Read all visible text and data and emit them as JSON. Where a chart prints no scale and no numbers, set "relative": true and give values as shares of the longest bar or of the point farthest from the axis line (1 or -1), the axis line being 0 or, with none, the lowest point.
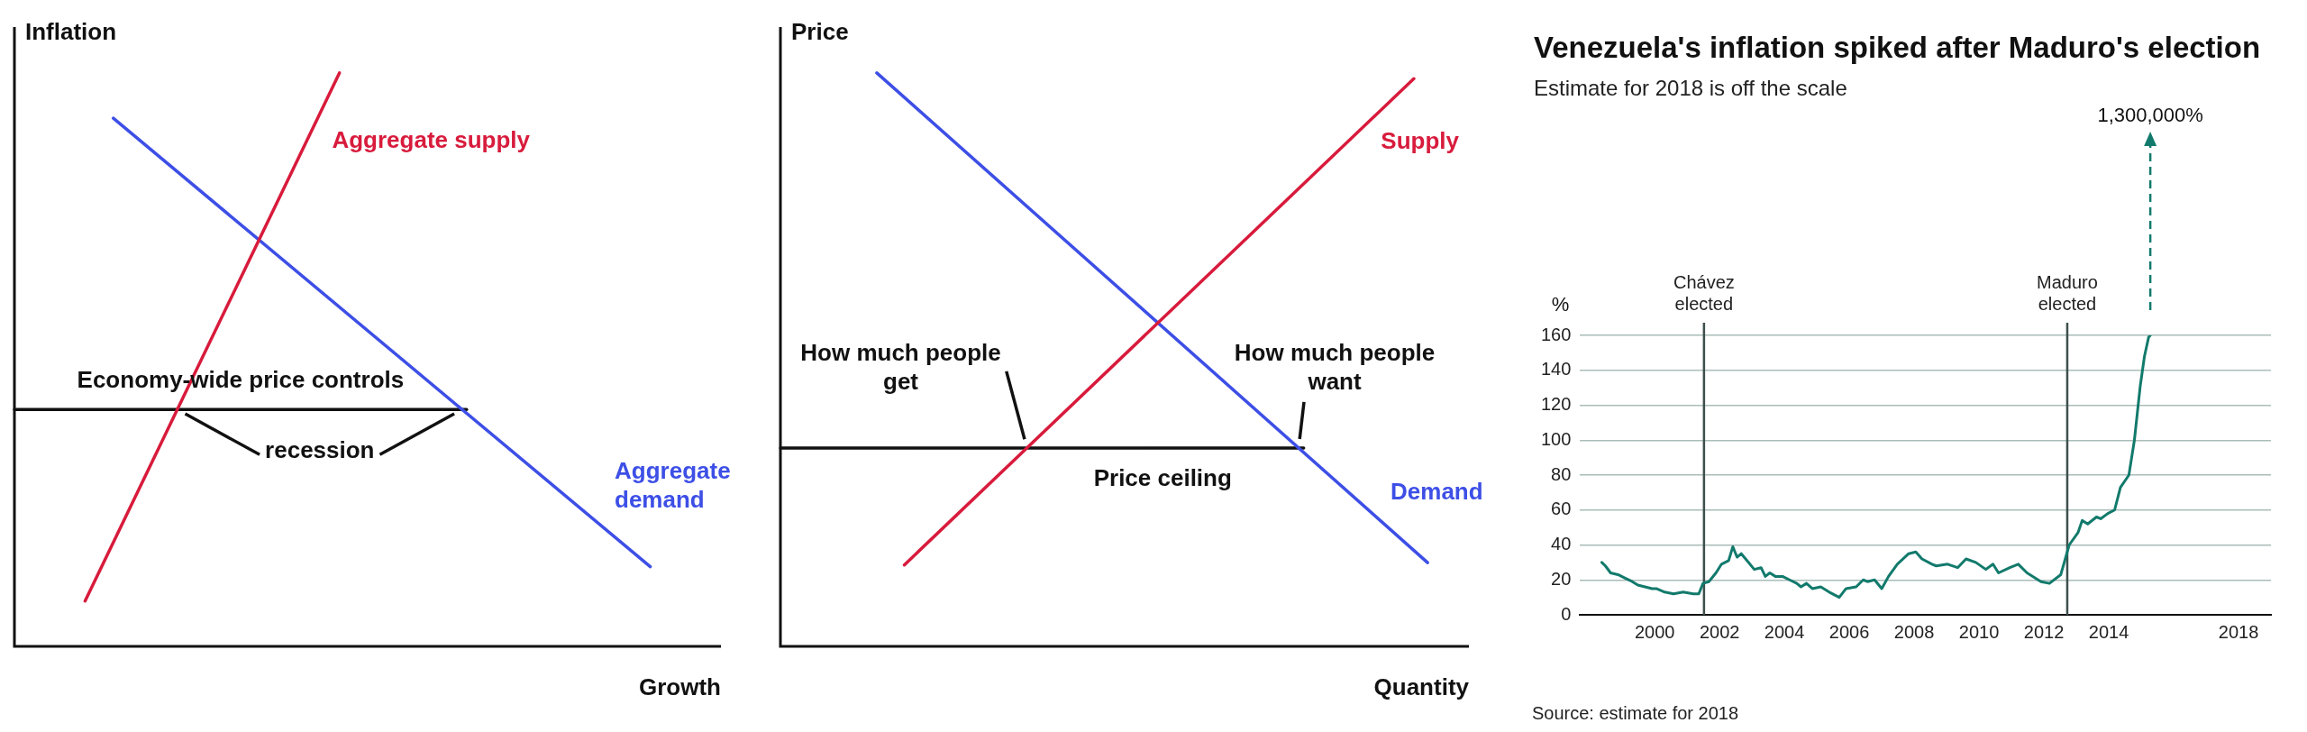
{
  "chart_data": [
    {
      "type": "line",
      "relative": true,
      "ylabel": "Inflation",
      "xlabel": "Growth",
      "legend": false,
      "grid": false,
      "categories": [
        null,
        null,
        null,
        null,
        null,
        null,
        null,
        null,
        null,
        null,
        null,
        null,
        null,
        null,
        null,
        null,
        null,
        null,
        null,
        null,
        null,
        null,
        null,
        null,
        null,
        null,
        null,
        null,
        null,
        null,
        null,
        null,
        null,
        null,
        null,
        null,
        null,
        null,
        null,
        null,
        null,
        null,
        null,
        null,
        null,
        null,
        null,
        null,
        null,
        null,
        null
      ],
      "series": [
        {
          "name": "Aggregate supply",
          "color": "#d81b3c",
          "values": [
            null,
            null,
            null,
            null,
            null,
            0.079,
            null,
            null,
            null,
            null,
            null,
            null,
            null,
            null,
            null,
            null,
            null,
            null,
            null,
            null,
            null,
            null,
            null,
            1,
            null,
            null,
            null,
            null,
            null,
            null,
            null,
            null,
            null,
            null,
            null,
            null,
            null,
            null,
            null,
            null,
            null,
            null,
            null,
            null,
            null,
            null,
            null,
            null,
            null,
            null,
            null
          ]
        },
        {
          "name": "Aggregate demand",
          "color": "#3d4fe6",
          "values": [
            null,
            null,
            null,
            null,
            null,
            null,
            null,
            0.921,
            null,
            null,
            null,
            null,
            null,
            null,
            null,
            null,
            null,
            null,
            null,
            null,
            null,
            null,
            null,
            null,
            null,
            null,
            null,
            null,
            null,
            null,
            null,
            null,
            null,
            null,
            null,
            null,
            null,
            null,
            null,
            null,
            null,
            null,
            null,
            null,
            null,
            0.139,
            null,
            null,
            null,
            null,
            null
          ]
        },
        {
          "name": "Economy-wide price controls",
          "color": "#111111",
          "values": [
            0.413,
            null,
            null,
            null,
            null,
            null,
            null,
            null,
            null,
            null,
            null,
            null,
            null,
            null,
            null,
            null,
            null,
            null,
            null,
            null,
            null,
            null,
            null,
            null,
            null,
            null,
            null,
            null,
            null,
            null,
            null,
            null,
            0.413,
            null,
            null,
            null,
            null,
            null,
            null,
            null,
            null,
            null,
            null,
            null,
            null,
            null,
            null,
            null,
            null,
            null,
            null
          ]
        }
      ],
      "annotations": [
        "recession"
      ]
    },
    {
      "type": "line",
      "relative": true,
      "ylabel": "Price",
      "xlabel": "Quantity",
      "legend": false,
      "grid": false,
      "categories": [
        null,
        null,
        null,
        null,
        null,
        null,
        null,
        null,
        null,
        null,
        null,
        null,
        null,
        null,
        null,
        null,
        null,
        null,
        null,
        null,
        null,
        null,
        null,
        null,
        null,
        null,
        null,
        null,
        null,
        null,
        null,
        null,
        null,
        null,
        null,
        null,
        null,
        null,
        null,
        null,
        null,
        null,
        null,
        null,
        null,
        null,
        null,
        null,
        null,
        null,
        null
      ],
      "series": [
        {
          "name": "Supply",
          "color": "#d81b3c",
          "values": [
            null,
            null,
            null,
            null,
            null,
            null,
            null,
            null,
            null,
            0.142,
            null,
            null,
            null,
            null,
            null,
            null,
            null,
            null,
            null,
            null,
            null,
            null,
            null,
            null,
            null,
            null,
            null,
            null,
            null,
            null,
            null,
            null,
            null,
            null,
            null,
            null,
            null,
            null,
            null,
            null,
            null,
            null,
            null,
            null,
            null,
            null,
            0.99,
            null,
            null,
            null,
            null
          ]
        },
        {
          "name": "Demand",
          "color": "#3d4fe6",
          "values": [
            null,
            null,
            null,
            null,
            null,
            null,
            null,
            1,
            null,
            null,
            null,
            null,
            null,
            null,
            null,
            null,
            null,
            null,
            null,
            null,
            null,
            null,
            null,
            null,
            null,
            null,
            null,
            null,
            null,
            null,
            null,
            null,
            null,
            null,
            null,
            null,
            null,
            null,
            null,
            null,
            null,
            null,
            null,
            null,
            null,
            null,
            null,
            0.146,
            null,
            null,
            null
          ]
        },
        {
          "name": "Price ceiling",
          "color": "#111111",
          "values": [
            0.346,
            null,
            null,
            null,
            null,
            null,
            null,
            null,
            null,
            null,
            null,
            null,
            null,
            null,
            null,
            null,
            null,
            null,
            null,
            null,
            null,
            null,
            null,
            null,
            null,
            null,
            null,
            null,
            null,
            null,
            null,
            null,
            null,
            null,
            null,
            null,
            null,
            null,
            0.346,
            null,
            null,
            null,
            null,
            null,
            null,
            null,
            null,
            null,
            null,
            null,
            null
          ]
        }
      ],
      "annotations": [
        "How much people get",
        "How much people want"
      ]
    },
    {
      "type": "line",
      "title": "Venezuela's inflation spiked after Maduro's election",
      "subtitle": "Estimate for 2018 is off the scale",
      "ylabel": "%",
      "legend": false,
      "grid": "y",
      "xlim": [
        1997.7,
        2019
      ],
      "xticks": [
        2000,
        2002,
        2004,
        2006,
        2008,
        2010,
        2012,
        2014,
        2018
      ],
      "ylim": [
        0,
        160
      ],
      "yticks": [
        0,
        20,
        40,
        60,
        80,
        100,
        120,
        140,
        160
      ],
      "series": [
        {
          "color": "#127a6c",
          "x": [
            1998.37,
            1998.48,
            1998.64,
            1998.87,
            1999.09,
            1999.31,
            1999.48,
            1999.7,
            1999.92,
            2000.05,
            2000.31,
            2000.58,
            2000.88,
            2001.19,
            2001.36,
            2001.49,
            2001.67,
            2001.89,
            2002.06,
            2002.28,
            2002.41,
            2002.54,
            2002.67,
            2002.85,
            2003.07,
            2003.28,
            2003.41,
            2003.55,
            2003.72,
            2003.94,
            2004.16,
            2004.38,
            2004.51,
            2004.68,
            2004.86,
            2005.12,
            2005.38,
            2005.69,
            2005.9,
            2006.21,
            2006.43,
            2006.56,
            2006.78,
            2007,
            2007.21,
            2007.48,
            2007.83,
            2008.05,
            2008.24,
            2008.55,
            2008.68,
            2009.03,
            2009.34,
            2009.6,
            2009.9,
            2010.21,
            2010.43,
            2010.6,
            2010.95,
            2011.21,
            2011.48,
            2011.91,
            2012.17,
            2012.52,
            2012.78,
            2013.05,
            2013.18,
            2013.35,
            2013.62,
            2013.75,
            2013.97,
            2014.18,
            2014.36,
            2014.62,
            2014.79,
            2014.97,
            2015.1,
            2015.23,
            2015.28
          ],
          "values": [
            30,
            28,
            24,
            23,
            21,
            19,
            17,
            16,
            15,
            15,
            13,
            12,
            13,
            12,
            12,
            18,
            19,
            24,
            29,
            31,
            39,
            33,
            35,
            31,
            26,
            27,
            22,
            24,
            22,
            22,
            20,
            18,
            16,
            18,
            15,
            16,
            13,
            10,
            15,
            16,
            20,
            19,
            20,
            15,
            22,
            29,
            35,
            36,
            32,
            29,
            28,
            29,
            27,
            32,
            30,
            26,
            29,
            24,
            27,
            29,
            24,
            19,
            18,
            23,
            40,
            47,
            54,
            52,
            56,
            55,
            58,
            60,
            73,
            80,
            100,
            131,
            148,
            159,
            160
          ]
        }
      ],
      "ref_lines": [
        {
          "axis": "x",
          "value": 2001.52,
          "label": "Chávez elected",
          "color": "#3d4f4c"
        },
        {
          "axis": "x",
          "value": 2012.72,
          "label": "Maduro elected",
          "color": "#3d4f4c"
        }
      ],
      "annotations": [
        "1,300,000%",
        "Source: estimate for 2018"
      ]
    }
  ]
}
